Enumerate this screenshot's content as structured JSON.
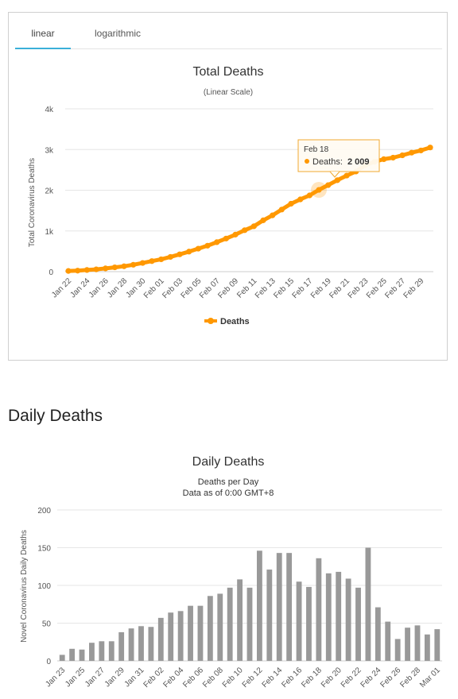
{
  "tabs": [
    {
      "label": "linear"
    },
    {
      "label": "logarithmic"
    }
  ],
  "section": {
    "title": "Daily Deaths"
  },
  "colors": {
    "accent": "#3ab0d9",
    "line": "#ff9800",
    "bar": "#999999"
  },
  "chart_data": [
    {
      "type": "line",
      "title": "Total Deaths",
      "subtitle": "(Linear Scale)",
      "ylabel": "Total Coronavirus Deaths",
      "xlabel": "",
      "ylim": [
        0,
        4000
      ],
      "y_ticks": [
        "0",
        "1k",
        "2k",
        "3k",
        "4k"
      ],
      "x_ticks": [
        "Jan 22",
        "Jan 24",
        "Jan 26",
        "Jan 28",
        "Jan 30",
        "Feb 01",
        "Feb 03",
        "Feb 05",
        "Feb 07",
        "Feb 09",
        "Feb 11",
        "Feb 13",
        "Feb 15",
        "Feb 17",
        "Feb 19",
        "Feb 21",
        "Feb 23",
        "Feb 25",
        "Feb 27",
        "Feb 29"
      ],
      "legend": "bottom-center",
      "grid": true,
      "series": [
        {
          "name": "Deaths",
          "x": [
            "Jan 22",
            "Jan 23",
            "Jan 24",
            "Jan 25",
            "Jan 26",
            "Jan 27",
            "Jan 28",
            "Jan 29",
            "Jan 30",
            "Jan 31",
            "Feb 01",
            "Feb 02",
            "Feb 03",
            "Feb 04",
            "Feb 05",
            "Feb 06",
            "Feb 07",
            "Feb 08",
            "Feb 09",
            "Feb 10",
            "Feb 11",
            "Feb 12",
            "Feb 13",
            "Feb 14",
            "Feb 15",
            "Feb 16",
            "Feb 17",
            "Feb 18",
            "Feb 19",
            "Feb 20",
            "Feb 21",
            "Feb 22",
            "Feb 23",
            "Feb 24",
            "Feb 25",
            "Feb 26",
            "Feb 27",
            "Feb 28",
            "Feb 29",
            "Mar 01"
          ],
          "values": [
            17,
            25,
            41,
            56,
            80,
            106,
            132,
            170,
            213,
            259,
            304,
            362,
            426,
            492,
            565,
            638,
            724,
            813,
            910,
            1018,
            1115,
            1261,
            1383,
            1526,
            1669,
            1775,
            1873,
            2009,
            2126,
            2247,
            2360,
            2460,
            2618,
            2699,
            2763,
            2800,
            2858,
            2923,
            2977,
            3050
          ]
        }
      ],
      "tooltip": {
        "date": "Feb 18",
        "label": "Deaths:",
        "value": "2 009"
      }
    },
    {
      "type": "bar",
      "title": "Daily Deaths",
      "subtitle": "Deaths per Day",
      "subtitle2": "Data as of 0:00 GMT+8",
      "ylabel": "Novel Coronavirus Daily Deaths",
      "xlabel": "",
      "ylim": [
        0,
        200
      ],
      "y_ticks": [
        "0",
        "50",
        "100",
        "150",
        "200"
      ],
      "x_ticks": [
        "Jan 23",
        "Jan 25",
        "Jan 27",
        "Jan 29",
        "Jan 31",
        "Feb 02",
        "Feb 04",
        "Feb 06",
        "Feb 08",
        "Feb 10",
        "Feb 12",
        "Feb 14",
        "Feb 16",
        "Feb 18",
        "Feb 20",
        "Feb 22",
        "Feb 24",
        "Feb 26",
        "Feb 28",
        "Mar 01"
      ],
      "grid": true,
      "categories": [
        "Jan 23",
        "Jan 24",
        "Jan 25",
        "Jan 26",
        "Jan 27",
        "Jan 28",
        "Jan 29",
        "Jan 30",
        "Jan 31",
        "Feb 01",
        "Feb 02",
        "Feb 03",
        "Feb 04",
        "Feb 05",
        "Feb 06",
        "Feb 07",
        "Feb 08",
        "Feb 09",
        "Feb 10",
        "Feb 11",
        "Feb 12",
        "Feb 13",
        "Feb 14",
        "Feb 15",
        "Feb 16",
        "Feb 17",
        "Feb 18",
        "Feb 19",
        "Feb 20",
        "Feb 21",
        "Feb 22",
        "Feb 23",
        "Feb 24",
        "Feb 25",
        "Feb 26",
        "Feb 27",
        "Feb 28",
        "Feb 29",
        "Mar 01"
      ],
      "values": [
        8,
        16,
        15,
        24,
        26,
        26,
        38,
        43,
        46,
        45,
        57,
        64,
        66,
        73,
        73,
        86,
        89,
        97,
        108,
        97,
        146,
        121,
        143,
        143,
        105,
        98,
        136,
        116,
        118,
        109,
        97,
        150,
        71,
        52,
        29,
        44,
        47,
        35,
        42
      ]
    }
  ]
}
